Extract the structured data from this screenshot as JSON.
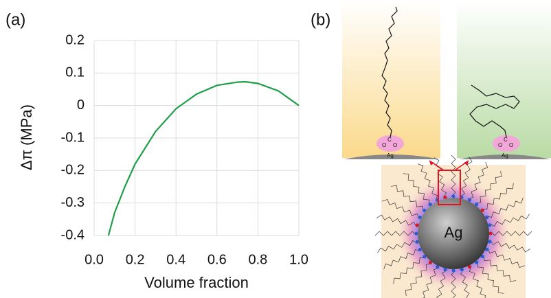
{
  "panel_labels": [
    "(a)",
    "(b)"
  ],
  "chart_data": {
    "type": "line",
    "xlabel": "Volume fraction",
    "ylabel": "Δπ (MPa)",
    "x": [
      0.07,
      0.1,
      0.15,
      0.2,
      0.3,
      0.4,
      0.5,
      0.6,
      0.7,
      0.74,
      0.8,
      0.9,
      1.0
    ],
    "series": [
      {
        "color": "#1f9e48",
        "values": [
          -0.4,
          -0.33,
          -0.25,
          -0.18,
          -0.08,
          -0.01,
          0.035,
          0.062,
          0.072,
          0.073,
          0.068,
          0.045,
          0.0
        ]
      }
    ],
    "xlim": [
      0,
      1
    ],
    "ylim": [
      -0.4,
      0.2
    ],
    "xticks": [
      {
        "value": 0,
        "label": "0.0"
      },
      0.2,
      0.4,
      0.6,
      0.8,
      {
        "value": 1,
        "label": "1.0"
      }
    ],
    "yticks": [
      0.2,
      0.1,
      0,
      -0.1,
      -0.2,
      -0.3,
      -0.4
    ],
    "grid": true
  },
  "diagram": {
    "left_substrate": "Ag",
    "right_substrate": "Ag",
    "sphere": "Ag",
    "left_carboxylate": [
      "O",
      "C",
      "O"
    ],
    "right_carboxylate": [
      "O",
      "C",
      "O"
    ]
  }
}
